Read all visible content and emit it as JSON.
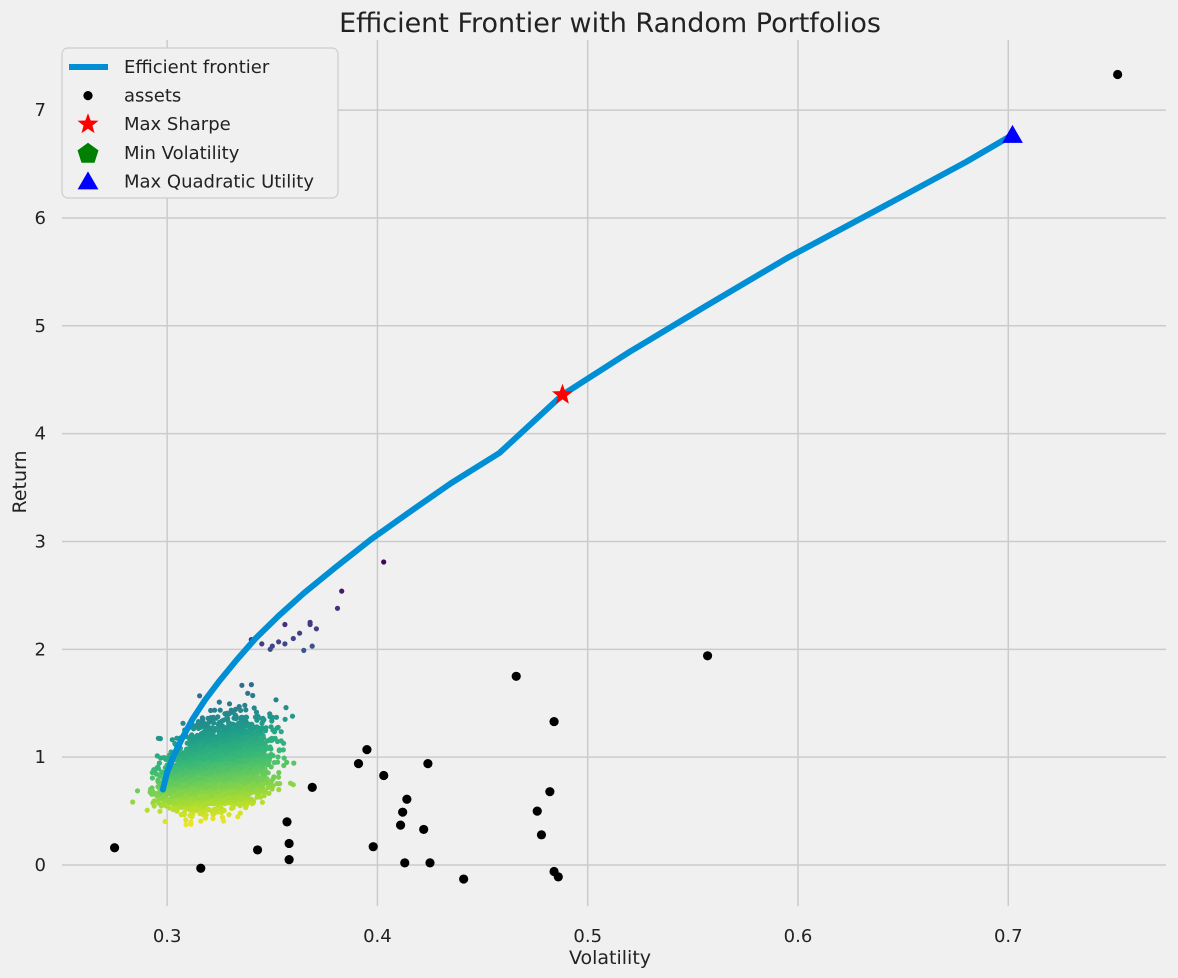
{
  "chart_data": {
    "type": "scatter",
    "title": "Efficient Frontier with Random Portfolios",
    "xlabel": "Volatility",
    "ylabel": "Return",
    "xlim": [
      0.25,
      0.775
    ],
    "ylim": [
      -0.38,
      7.65
    ],
    "grid": true,
    "legend_position": "top-left",
    "x_ticks": [
      "0.3",
      "0.4",
      "0.5",
      "0.6",
      "0.7"
    ],
    "x_tick_values": [
      0.3,
      0.4,
      0.5,
      0.6,
      0.7
    ],
    "y_ticks": [
      "0",
      "1",
      "2",
      "3",
      "4",
      "5",
      "6",
      "7"
    ],
    "y_tick_values": [
      0,
      1,
      2,
      3,
      4,
      5,
      6,
      7
    ],
    "colors": {
      "background": "#f0f0f0",
      "grid": "#cbcbcb",
      "frontier": "#008fd5",
      "assets": "#000000",
      "max_sharpe": "#ff0000",
      "min_volatility": "#008000",
      "max_quadratic_utility": "#0000ff"
    },
    "series": [
      {
        "name": "Efficient frontier",
        "kind": "line",
        "x": [
          0.298,
          0.3,
          0.303,
          0.307,
          0.312,
          0.318,
          0.325,
          0.333,
          0.342,
          0.353,
          0.365,
          0.38,
          0.397,
          0.415,
          0.435,
          0.458,
          0.488,
          0.52,
          0.555,
          0.595,
          0.64,
          0.68,
          0.702
        ],
        "y": [
          0.7,
          0.86,
          1.01,
          1.17,
          1.35,
          1.53,
          1.71,
          1.9,
          2.1,
          2.31,
          2.52,
          2.76,
          3.02,
          3.27,
          3.54,
          3.82,
          4.36,
          4.76,
          5.17,
          5.63,
          6.1,
          6.52,
          6.77
        ]
      },
      {
        "name": "assets",
        "kind": "scatter",
        "x": [
          0.752,
          0.557,
          0.466,
          0.484,
          0.482,
          0.476,
          0.478,
          0.484,
          0.486,
          0.441,
          0.424,
          0.425,
          0.422,
          0.414,
          0.412,
          0.413,
          0.411,
          0.403,
          0.395,
          0.391,
          0.398,
          0.369,
          0.357,
          0.358,
          0.358,
          0.343,
          0.316,
          0.275
        ],
        "y": [
          7.33,
          1.94,
          1.75,
          1.33,
          0.68,
          0.5,
          0.28,
          -0.06,
          -0.11,
          -0.13,
          0.94,
          0.02,
          0.33,
          0.61,
          0.49,
          0.02,
          0.37,
          0.83,
          1.07,
          0.94,
          0.17,
          0.72,
          0.4,
          0.2,
          0.05,
          0.14,
          -0.03,
          0.16
        ]
      },
      {
        "name": "Max Sharpe",
        "kind": "marker",
        "marker": "star",
        "x": [
          0.488
        ],
        "y": [
          4.36
        ]
      },
      {
        "name": "Min Volatility",
        "kind": "marker",
        "marker": "pentagon",
        "x": [
          0.298
        ],
        "y": [
          0.7
        ]
      },
      {
        "name": "Max Quadratic Utility",
        "kind": "marker",
        "marker": "triangle",
        "x": [
          0.702
        ],
        "y": [
          6.77
        ]
      }
    ],
    "random_portfolios": {
      "count": 5000,
      "colormap": "viridis",
      "volatility_range": [
        0.283,
        0.37
      ],
      "return_range": [
        0.27,
        2.81
      ],
      "outliers": [
        {
          "x": 0.403,
          "y": 2.81
        },
        {
          "x": 0.383,
          "y": 2.54
        },
        {
          "x": 0.381,
          "y": 2.38
        },
        {
          "x": 0.371,
          "y": 2.19
        },
        {
          "x": 0.368,
          "y": 2.25
        },
        {
          "x": 0.368,
          "y": 2.23
        },
        {
          "x": 0.363,
          "y": 2.15
        },
        {
          "x": 0.36,
          "y": 2.1
        },
        {
          "x": 0.356,
          "y": 2.23
        },
        {
          "x": 0.356,
          "y": 2.05
        },
        {
          "x": 0.353,
          "y": 2.07
        },
        {
          "x": 0.35,
          "y": 2.03
        },
        {
          "x": 0.345,
          "y": 2.05
        },
        {
          "x": 0.34,
          "y": 2.09
        },
        {
          "x": 0.369,
          "y": 2.03
        },
        {
          "x": 0.365,
          "y": 1.99
        },
        {
          "x": 0.349,
          "y": 2.0
        }
      ]
    }
  }
}
